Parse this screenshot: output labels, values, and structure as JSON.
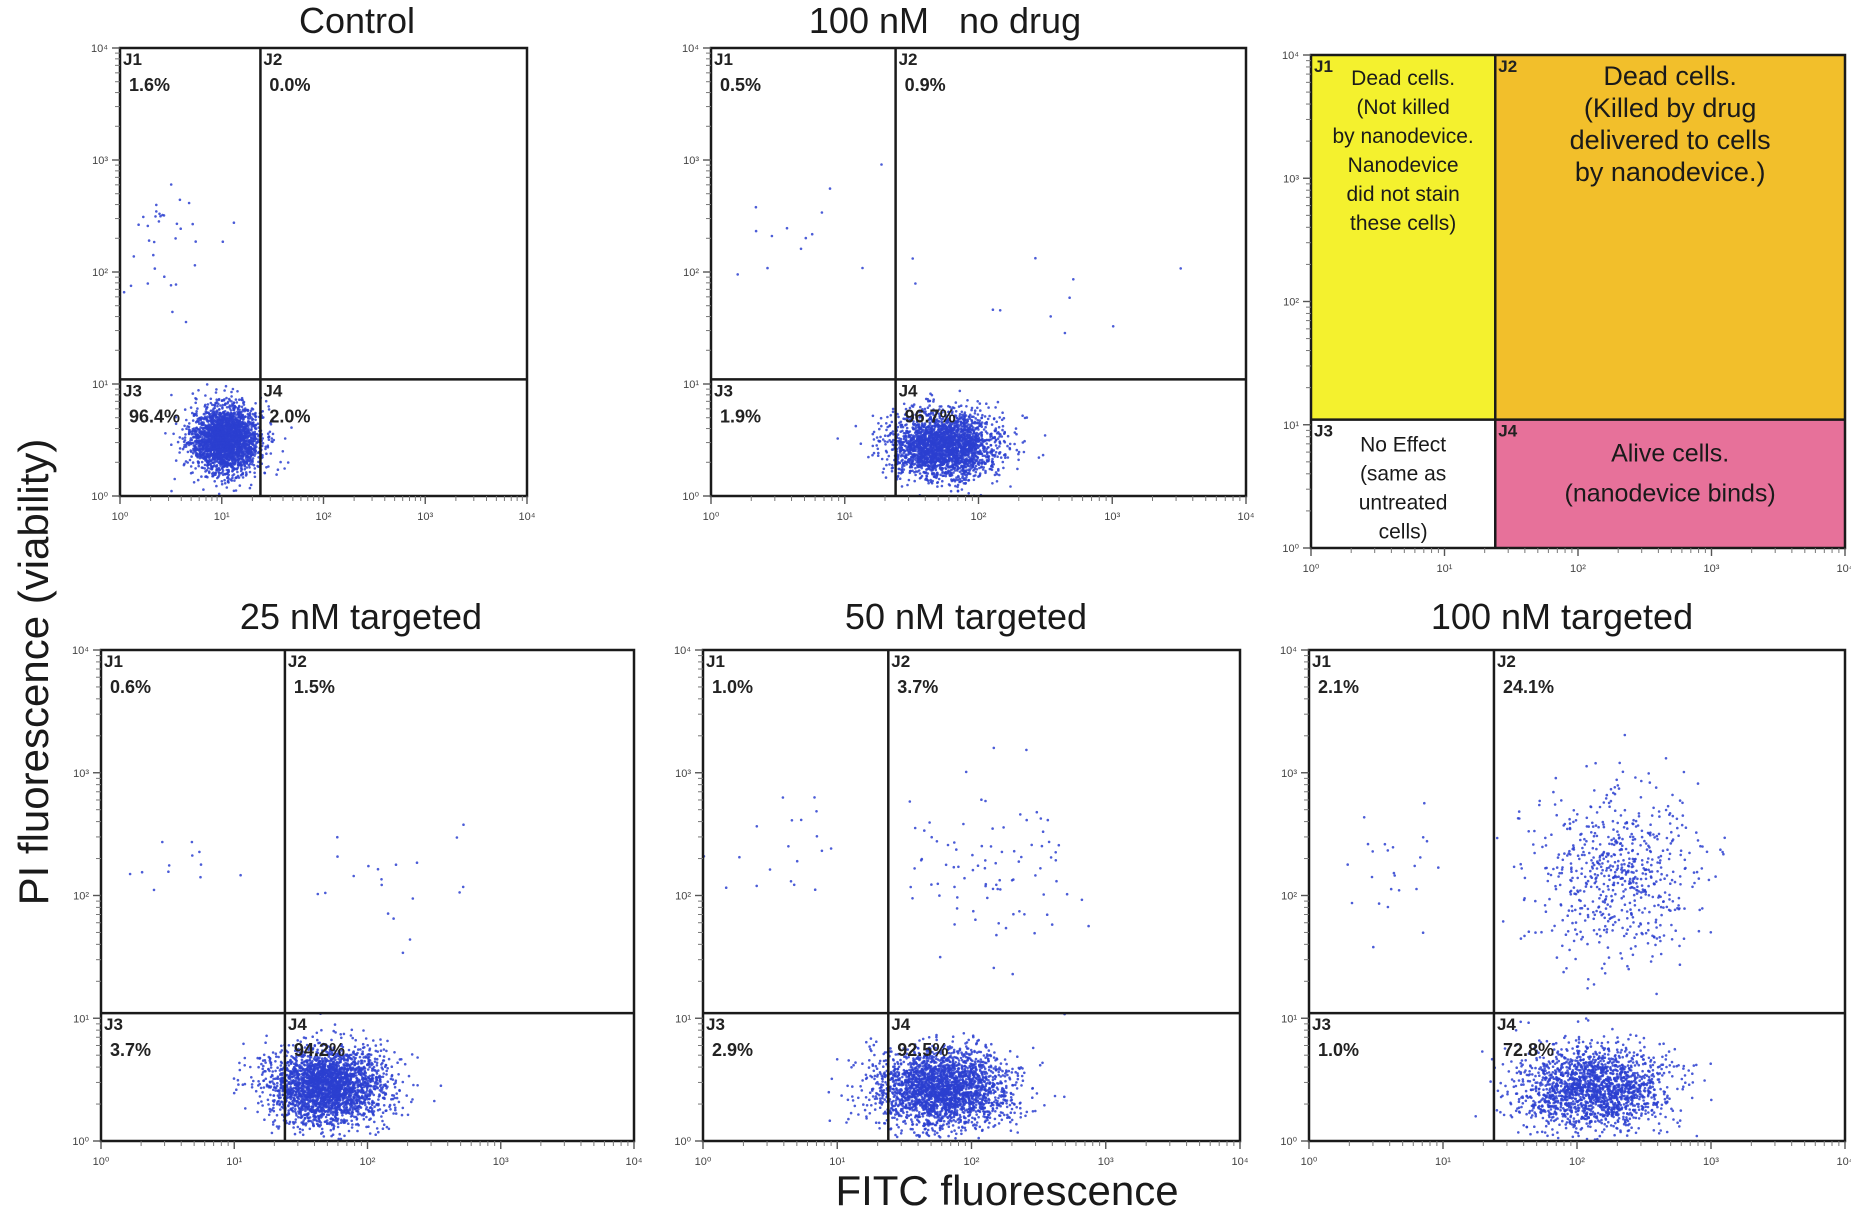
{
  "colors": {
    "points": "#2b3fd0",
    "frame": "#1a1a1a",
    "j1_fill": "#f4f12e",
    "j2_fill": "#f2bf2b",
    "j3_fill": "#ffffff",
    "j4_fill": "#e7719a"
  },
  "axes": {
    "xlabel": "FITC fluorescence",
    "ylabel": "PI fluorescence (viability)",
    "tick_labels": [
      "10⁰",
      "10¹",
      "10²",
      "10³",
      "10⁴"
    ]
  },
  "chart_data": [
    {
      "type": "scatter",
      "title": "Control",
      "scale": "log",
      "xlim": [
        1,
        10000
      ],
      "ylim": [
        1,
        10000
      ],
      "gate": {
        "x": 24,
        "y": 11
      },
      "quadrants": [
        {
          "name": "J1",
          "percent": "1.6%"
        },
        {
          "name": "J2",
          "percent": "0.0%"
        },
        {
          "name": "J3",
          "percent": "96.4%"
        },
        {
          "name": "J4",
          "percent": "2.0%"
        }
      ],
      "populations": [
        {
          "x": 11,
          "y": 3.2,
          "sx": 0.17,
          "sy": 0.15,
          "n": 2600
        },
        {
          "x": 2.5,
          "y": 150,
          "sx": 0.25,
          "sy": 0.3,
          "n": 35
        }
      ]
    },
    {
      "type": "scatter",
      "title": "100 nM   no drug",
      "scale": "log",
      "xlim": [
        1,
        10000
      ],
      "ylim": [
        1,
        10000
      ],
      "gate": {
        "x": 24,
        "y": 11
      },
      "quadrants": [
        {
          "name": "J1",
          "percent": "0.5%"
        },
        {
          "name": "J2",
          "percent": "0.9%"
        },
        {
          "name": "J3",
          "percent": "1.9%"
        },
        {
          "name": "J4",
          "percent": "96.7%"
        }
      ],
      "populations": [
        {
          "x": 55,
          "y": 2.8,
          "sx": 0.2,
          "sy": 0.15,
          "n": 2600
        },
        {
          "x": 5,
          "y": 250,
          "sx": 0.35,
          "sy": 0.3,
          "n": 12
        },
        {
          "x": 200,
          "y": 120,
          "sx": 0.5,
          "sy": 0.4,
          "n": 12
        }
      ]
    },
    {
      "type": "table",
      "title": "",
      "scale": "log",
      "xlim": [
        1,
        10000
      ],
      "ylim": [
        1,
        10000
      ],
      "gate": {
        "x": 24,
        "y": 11
      },
      "quadrants": [
        {
          "name": "J1",
          "label_lines": [
            "Dead cells.",
            "",
            "(Not killed",
            "by nanodevice.",
            "Nanodevice",
            "did not stain",
            "these cells)"
          ]
        },
        {
          "name": "J2",
          "label_lines": [
            "Dead cells.",
            "",
            "(Killed by drug",
            "delivered to cells",
            "by nanodevice.)"
          ]
        },
        {
          "name": "J3",
          "label_lines": [
            "No Effect",
            "(same as",
            "untreated",
            "cells)"
          ]
        },
        {
          "name": "J4",
          "label_lines": [
            "Alive cells.",
            "(nanodevice binds)"
          ]
        }
      ]
    },
    {
      "type": "scatter",
      "title": "25 nM targeted",
      "scale": "log",
      "xlim": [
        1,
        10000
      ],
      "ylim": [
        1,
        10000
      ],
      "gate": {
        "x": 24,
        "y": 11
      },
      "quadrants": [
        {
          "name": "J1",
          "percent": "0.6%"
        },
        {
          "name": "J2",
          "percent": "1.5%"
        },
        {
          "name": "J3",
          "percent": "3.7%"
        },
        {
          "name": "J4",
          "percent": "94.2%"
        }
      ],
      "populations": [
        {
          "x": 50,
          "y": 2.8,
          "sx": 0.22,
          "sy": 0.16,
          "n": 2800
        },
        {
          "x": 4,
          "y": 180,
          "sx": 0.3,
          "sy": 0.2,
          "n": 12
        },
        {
          "x": 150,
          "y": 150,
          "sx": 0.35,
          "sy": 0.3,
          "n": 20
        }
      ]
    },
    {
      "type": "scatter",
      "title": "50 nM targeted",
      "scale": "log",
      "xlim": [
        1,
        10000
      ],
      "ylim": [
        1,
        10000
      ],
      "gate": {
        "x": 24,
        "y": 11
      },
      "quadrants": [
        {
          "name": "J1",
          "percent": "1.0%"
        },
        {
          "name": "J2",
          "percent": "3.7%"
        },
        {
          "name": "J3",
          "percent": "2.9%"
        },
        {
          "name": "J4",
          "percent": "92.5%"
        }
      ],
      "populations": [
        {
          "x": 60,
          "y": 2.7,
          "sx": 0.25,
          "sy": 0.16,
          "n": 2600
        },
        {
          "x": 4,
          "y": 200,
          "sx": 0.35,
          "sy": 0.35,
          "n": 20
        },
        {
          "x": 130,
          "y": 150,
          "sx": 0.35,
          "sy": 0.35,
          "n": 90
        }
      ]
    },
    {
      "type": "scatter",
      "title": "100 nM targeted",
      "scale": "log",
      "xlim": [
        1,
        10000
      ],
      "ylim": [
        1,
        10000
      ],
      "gate": {
        "x": 24,
        "y": 11
      },
      "quadrants": [
        {
          "name": "J1",
          "percent": "2.1%"
        },
        {
          "name": "J2",
          "percent": "24.1%"
        },
        {
          "name": "J3",
          "percent": "1.0%"
        },
        {
          "name": "J4",
          "percent": "72.8%"
        }
      ],
      "populations": [
        {
          "x": 130,
          "y": 2.7,
          "sx": 0.28,
          "sy": 0.17,
          "n": 1900
        },
        {
          "x": 3.5,
          "y": 180,
          "sx": 0.3,
          "sy": 0.3,
          "n": 25
        },
        {
          "x": 200,
          "y": 150,
          "sx": 0.3,
          "sy": 0.35,
          "n": 650
        }
      ]
    }
  ]
}
